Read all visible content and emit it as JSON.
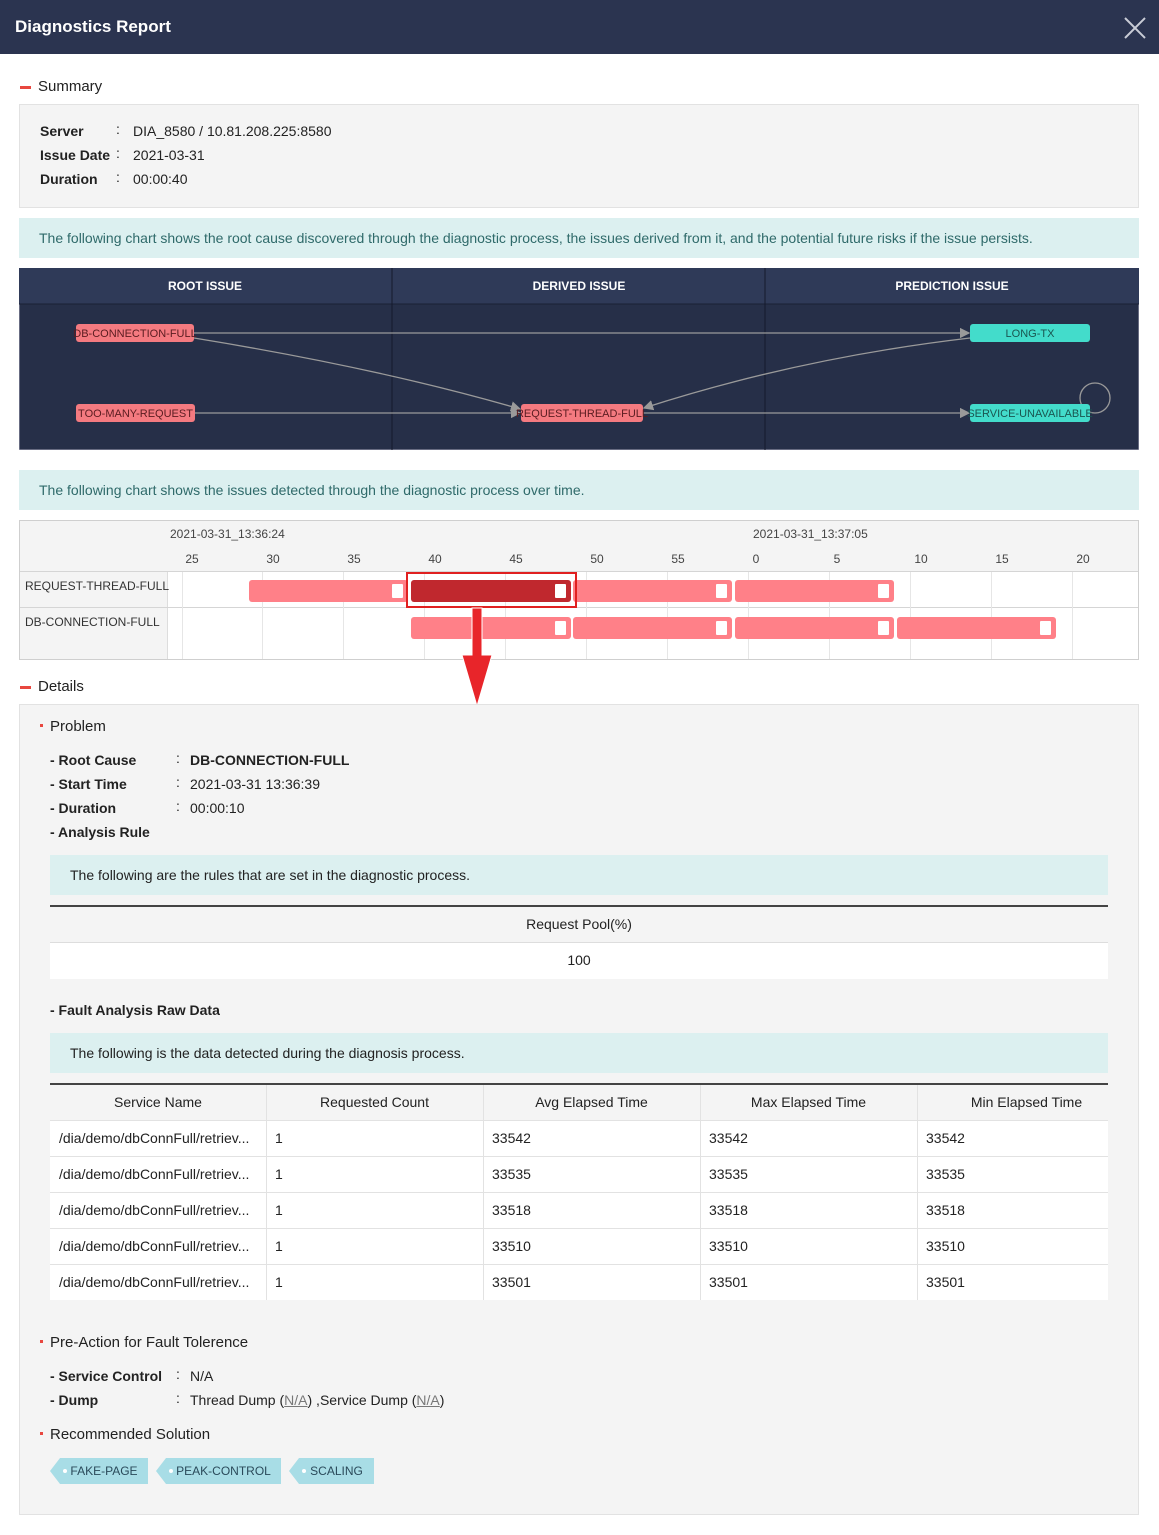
{
  "header": {
    "title": "Diagnostics Report"
  },
  "summary": {
    "title": "Summary",
    "separator": ":",
    "fields": [
      {
        "label": "Server",
        "value": "DIA_8580 / 10.81.208.225:8580"
      },
      {
        "label": "Issue Date",
        "value": "2021-03-31"
      },
      {
        "label": "Duration",
        "value": "00:00:40"
      }
    ]
  },
  "flow": {
    "info": "The following chart shows the root cause discovered through the diagnostic process, the issues derived from it, and the potential future risks if the issue persists.",
    "columns": [
      "ROOT ISSUE",
      "DERIVED ISSUE",
      "PREDICTION ISSUE"
    ],
    "nodes": [
      {
        "label": "DB-CONNECTION-FULL"
      },
      {
        "label": "TOO-MANY-REQUEST"
      },
      {
        "label": "REQUEST-THREAD-FULL"
      },
      {
        "label": "LONG-TX"
      },
      {
        "label": "SERVICE-UNAVAILABLE"
      }
    ]
  },
  "timeline": {
    "info": "The following chart shows the issues detected through the diagnostic process over time.",
    "time_labels": [
      "2021-03-31_13:36:24",
      "2021-03-31_13:37:05"
    ],
    "ticks": [
      25,
      30,
      35,
      40,
      45,
      50,
      55,
      0,
      5,
      10,
      15,
      20
    ],
    "rows": [
      "REQUEST-THREAD-FULL",
      "DB-CONNECTION-FULL"
    ]
  },
  "details": {
    "title": "Details",
    "problem": {
      "title": "Problem",
      "fields": [
        {
          "label": "- Root Cause",
          "value": "DB-CONNECTION-FULL"
        },
        {
          "label": "- Start Time",
          "value": "2021-03-31 13:36:39"
        },
        {
          "label": "- Duration",
          "value": "00:00:10"
        }
      ],
      "analysis_rule": "- Analysis Rule",
      "rule_info": "The following are the rules that are set in the diagnostic process.",
      "rule_table": {
        "header": "Request Pool(%)",
        "value": 100
      }
    },
    "raw_data": {
      "title": "- Fault Analysis Raw Data",
      "info": "The following is the data detected during the diagnosis process.",
      "columns": [
        "Service Name",
        "Requested Count",
        "Avg Elapsed Time",
        "Max Elapsed Time",
        "Min Elapsed Time"
      ],
      "rows": [
        [
          "/dia/demo/dbConnFull/retriev...",
          1,
          33542,
          33542,
          33542
        ],
        [
          "/dia/demo/dbConnFull/retriev...",
          1,
          33535,
          33535,
          33535
        ],
        [
          "/dia/demo/dbConnFull/retriev...",
          1,
          33518,
          33518,
          33518
        ],
        [
          "/dia/demo/dbConnFull/retriev...",
          1,
          33510,
          33510,
          33510
        ],
        [
          "/dia/demo/dbConnFull/retriev...",
          1,
          33501,
          33501,
          33501
        ]
      ]
    },
    "pre_action": {
      "title": "Pre-Action for Fault Tolerence",
      "fields": [
        {
          "label": "- Service Control",
          "value": "N/A"
        }
      ],
      "dump": {
        "label": "- Dump",
        "parts": [
          "Thread Dump (",
          "N/A",
          ") ,Service Dump (",
          "N/A",
          ")"
        ]
      }
    },
    "recommended": {
      "title": "Recommended Solution",
      "tags": [
        "FAKE-PAGE",
        "PEAK-CONTROL",
        "SCALING"
      ]
    }
  }
}
